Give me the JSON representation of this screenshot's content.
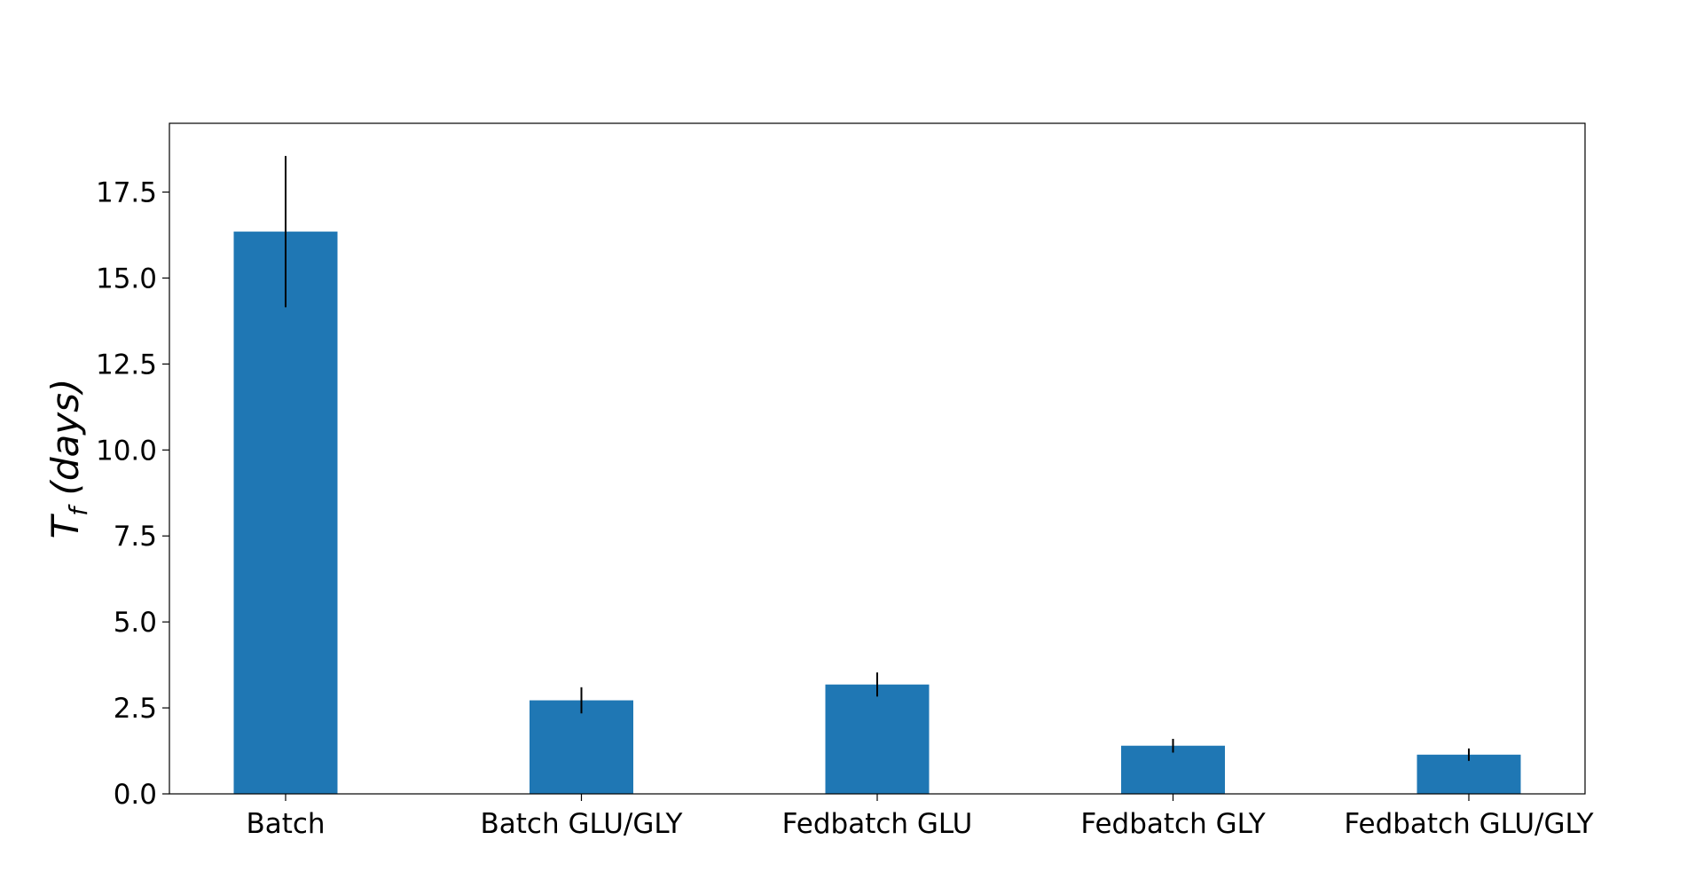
{
  "chart_data": {
    "type": "bar",
    "categories": [
      "Batch",
      "Batch GLU/GLY",
      "Fedbatch GLU",
      "Fedbatch GLY",
      "Fedbatch GLU/GLY"
    ],
    "values": [
      16.35,
      2.72,
      3.18,
      1.4,
      1.14
    ],
    "errors": [
      2.2,
      0.38,
      0.35,
      0.2,
      0.18
    ],
    "ylabel_main": "T",
    "ylabel_sub": "f",
    "ylabel_rest": " (days)",
    "ylim": [
      0,
      19.5
    ],
    "yticks": [
      0.0,
      2.5,
      5.0,
      7.5,
      10.0,
      12.5,
      15.0,
      17.5
    ],
    "ytick_labels": [
      "0.0",
      "2.5",
      "5.0",
      "7.5",
      "10.0",
      "12.5",
      "15.0",
      "17.5"
    ],
    "grid": false,
    "bar_color": "#1f77b4",
    "error_color": "#000000"
  }
}
